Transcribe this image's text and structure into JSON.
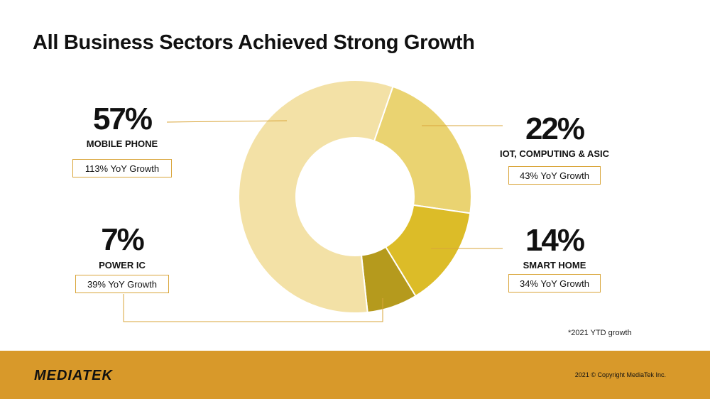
{
  "title": "All Business Sectors Achieved Strong Growth",
  "chart_data": {
    "type": "pie",
    "style": "donut",
    "title": "All Business Sectors Achieved Strong Growth",
    "categories": [
      "MOBILE PHONE",
      "IOT, COMPUTING & ASIC",
      "SMART HOME",
      "POWER IC"
    ],
    "values": [
      57,
      22,
      14,
      7
    ],
    "value_labels": [
      "57%",
      "22%",
      "14%",
      "7%"
    ],
    "growth_labels": [
      "113% YoY Growth",
      "43% YoY Growth",
      "34% YoY Growth",
      "39% YoY Growth"
    ],
    "colors": [
      "#f3e1a6",
      "#ead371",
      "#dcbc28",
      "#b59a1d"
    ],
    "unit": "%"
  },
  "colors": {
    "connector": "#d9a53a",
    "footer": "#d8992a"
  },
  "footnote": "*2021 YTD growth",
  "footer": {
    "logo": "MEDIATEK",
    "copyright": "2021 © Copyright MediaTek Inc."
  }
}
